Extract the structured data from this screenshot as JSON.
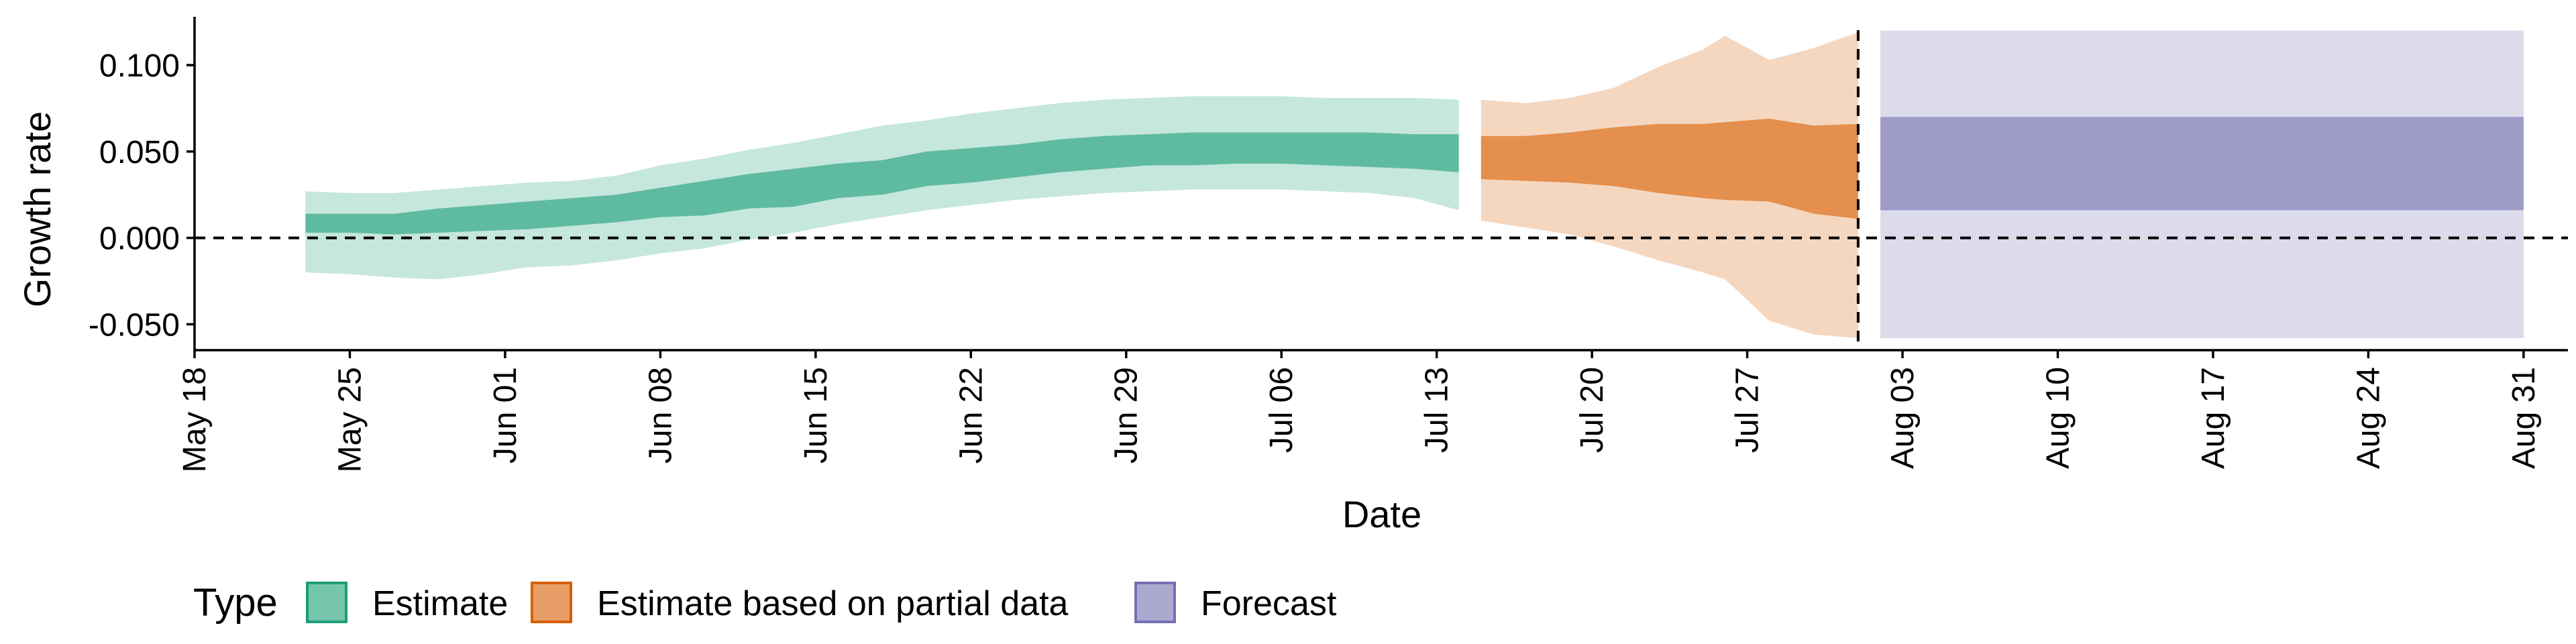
{
  "chart_data": {
    "type": "area",
    "xlabel": "Date",
    "ylabel": "Growth rate",
    "x_type": "date",
    "xlim": [
      "2020-05-18",
      "2020-09-02"
    ],
    "ylim": [
      -0.065,
      0.128
    ],
    "x_ticks": [
      {
        "date": "2020-05-18",
        "label": "May 18"
      },
      {
        "date": "2020-05-25",
        "label": "May 25"
      },
      {
        "date": "2020-06-01",
        "label": "Jun 01"
      },
      {
        "date": "2020-06-08",
        "label": "Jun 08"
      },
      {
        "date": "2020-06-15",
        "label": "Jun 15"
      },
      {
        "date": "2020-06-22",
        "label": "Jun 22"
      },
      {
        "date": "2020-06-29",
        "label": "Jun 29"
      },
      {
        "date": "2020-07-06",
        "label": "Jul 06"
      },
      {
        "date": "2020-07-13",
        "label": "Jul 13"
      },
      {
        "date": "2020-07-20",
        "label": "Jul 20"
      },
      {
        "date": "2020-07-27",
        "label": "Jul 27"
      },
      {
        "date": "2020-08-03",
        "label": "Aug 03"
      },
      {
        "date": "2020-08-10",
        "label": "Aug 10"
      },
      {
        "date": "2020-08-17",
        "label": "Aug 17"
      },
      {
        "date": "2020-08-24",
        "label": "Aug 24"
      },
      {
        "date": "2020-08-31",
        "label": "Aug 31"
      }
    ],
    "y_ticks": [
      {
        "value": 0.1,
        "label": "0.100"
      },
      {
        "value": 0.05,
        "label": "0.050"
      },
      {
        "value": 0.0,
        "label": "0.000"
      },
      {
        "value": -0.05,
        "label": "-0.050"
      }
    ],
    "reference_lines": {
      "horizontal_y": 0.0,
      "vertical_date": "2020-08-01"
    },
    "legend": {
      "title": "Type",
      "placement": "bottom-left",
      "items": [
        {
          "label": "Estimate",
          "color": "#1b9e77"
        },
        {
          "label": "Estimate based on partial data",
          "color": "#d95f02"
        },
        {
          "label": "Forecast",
          "color": "#7570b3"
        }
      ]
    },
    "series": [
      {
        "name": "Estimate",
        "color": "#1b9e77",
        "points": [
          {
            "date": "2020-05-23",
            "lower90": -0.02,
            "upper90": 0.027,
            "lower50": 0.003,
            "upper50": 0.014
          },
          {
            "date": "2020-05-25",
            "lower90": -0.021,
            "upper90": 0.026,
            "lower50": 0.003,
            "upper50": 0.014
          },
          {
            "date": "2020-05-27",
            "lower90": -0.023,
            "upper90": 0.026,
            "lower50": 0.002,
            "upper50": 0.014
          },
          {
            "date": "2020-05-29",
            "lower90": -0.024,
            "upper90": 0.028,
            "lower50": 0.003,
            "upper50": 0.017
          },
          {
            "date": "2020-05-31",
            "lower90": -0.021,
            "upper90": 0.03,
            "lower50": 0.004,
            "upper50": 0.019
          },
          {
            "date": "2020-06-02",
            "lower90": -0.017,
            "upper90": 0.032,
            "lower50": 0.005,
            "upper50": 0.021
          },
          {
            "date": "2020-06-04",
            "lower90": -0.016,
            "upper90": 0.033,
            "lower50": 0.007,
            "upper50": 0.023
          },
          {
            "date": "2020-06-06",
            "lower90": -0.013,
            "upper90": 0.036,
            "lower50": 0.009,
            "upper50": 0.025
          },
          {
            "date": "2020-06-08",
            "lower90": -0.009,
            "upper90": 0.042,
            "lower50": 0.012,
            "upper50": 0.029
          },
          {
            "date": "2020-06-10",
            "lower90": -0.006,
            "upper90": 0.046,
            "lower50": 0.013,
            "upper50": 0.033
          },
          {
            "date": "2020-06-12",
            "lower90": -0.001,
            "upper90": 0.051,
            "lower50": 0.017,
            "upper50": 0.037
          },
          {
            "date": "2020-06-14",
            "lower90": 0.003,
            "upper90": 0.055,
            "lower50": 0.018,
            "upper50": 0.04
          },
          {
            "date": "2020-06-16",
            "lower90": 0.008,
            "upper90": 0.06,
            "lower50": 0.023,
            "upper50": 0.043
          },
          {
            "date": "2020-06-18",
            "lower90": 0.012,
            "upper90": 0.065,
            "lower50": 0.025,
            "upper50": 0.045
          },
          {
            "date": "2020-06-20",
            "lower90": 0.016,
            "upper90": 0.068,
            "lower50": 0.03,
            "upper50": 0.05
          },
          {
            "date": "2020-06-22",
            "lower90": 0.019,
            "upper90": 0.072,
            "lower50": 0.032,
            "upper50": 0.052
          },
          {
            "date": "2020-06-24",
            "lower90": 0.022,
            "upper90": 0.075,
            "lower50": 0.035,
            "upper50": 0.054
          },
          {
            "date": "2020-06-26",
            "lower90": 0.024,
            "upper90": 0.078,
            "lower50": 0.038,
            "upper50": 0.057
          },
          {
            "date": "2020-06-28",
            "lower90": 0.026,
            "upper90": 0.08,
            "lower50": 0.04,
            "upper50": 0.059
          },
          {
            "date": "2020-06-30",
            "lower90": 0.027,
            "upper90": 0.081,
            "lower50": 0.042,
            "upper50": 0.06
          },
          {
            "date": "2020-07-02",
            "lower90": 0.028,
            "upper90": 0.082,
            "lower50": 0.042,
            "upper50": 0.061
          },
          {
            "date": "2020-07-04",
            "lower90": 0.028,
            "upper90": 0.082,
            "lower50": 0.043,
            "upper50": 0.061
          },
          {
            "date": "2020-07-06",
            "lower90": 0.028,
            "upper90": 0.082,
            "lower50": 0.043,
            "upper50": 0.061
          },
          {
            "date": "2020-07-08",
            "lower90": 0.027,
            "upper90": 0.081,
            "lower50": 0.042,
            "upper50": 0.061
          },
          {
            "date": "2020-07-10",
            "lower90": 0.026,
            "upper90": 0.081,
            "lower50": 0.041,
            "upper50": 0.061
          },
          {
            "date": "2020-07-12",
            "lower90": 0.023,
            "upper90": 0.081,
            "lower50": 0.04,
            "upper50": 0.06
          },
          {
            "date": "2020-07-14",
            "lower90": 0.016,
            "upper90": 0.08,
            "lower50": 0.038,
            "upper50": 0.06
          }
        ]
      },
      {
        "name": "Estimate based on partial data",
        "color": "#d95f02",
        "points": [
          {
            "date": "2020-07-15",
            "lower90": 0.01,
            "upper90": 0.08,
            "lower50": 0.034,
            "upper50": 0.059
          },
          {
            "date": "2020-07-17",
            "lower90": 0.006,
            "upper90": 0.078,
            "lower50": 0.033,
            "upper50": 0.059
          },
          {
            "date": "2020-07-19",
            "lower90": 0.002,
            "upper90": 0.081,
            "lower50": 0.032,
            "upper50": 0.061
          },
          {
            "date": "2020-07-21",
            "lower90": -0.005,
            "upper90": 0.087,
            "lower50": 0.03,
            "upper50": 0.064
          },
          {
            "date": "2020-07-23",
            "lower90": -0.013,
            "upper90": 0.099,
            "lower50": 0.026,
            "upper50": 0.066
          },
          {
            "date": "2020-07-25",
            "lower90": -0.02,
            "upper90": 0.109,
            "lower50": 0.023,
            "upper50": 0.066
          },
          {
            "date": "2020-07-26",
            "lower90": -0.024,
            "upper90": 0.117,
            "lower50": 0.022,
            "upper50": 0.067
          },
          {
            "date": "2020-07-28",
            "lower90": -0.048,
            "upper90": 0.103,
            "lower50": 0.021,
            "upper50": 0.069
          },
          {
            "date": "2020-07-30",
            "lower90": -0.056,
            "upper90": 0.11,
            "lower50": 0.014,
            "upper50": 0.065
          },
          {
            "date": "2020-08-01",
            "lower90": -0.058,
            "upper90": 0.119,
            "lower50": 0.011,
            "upper50": 0.066
          }
        ]
      },
      {
        "name": "Forecast",
        "color": "#7570b3",
        "points": [
          {
            "date": "2020-08-02",
            "lower90": -0.058,
            "upper90": 0.12,
            "lower50": 0.016,
            "upper50": 0.07
          },
          {
            "date": "2020-08-31",
            "lower90": -0.058,
            "upper90": 0.12,
            "lower50": 0.016,
            "upper50": 0.07
          }
        ]
      }
    ]
  }
}
